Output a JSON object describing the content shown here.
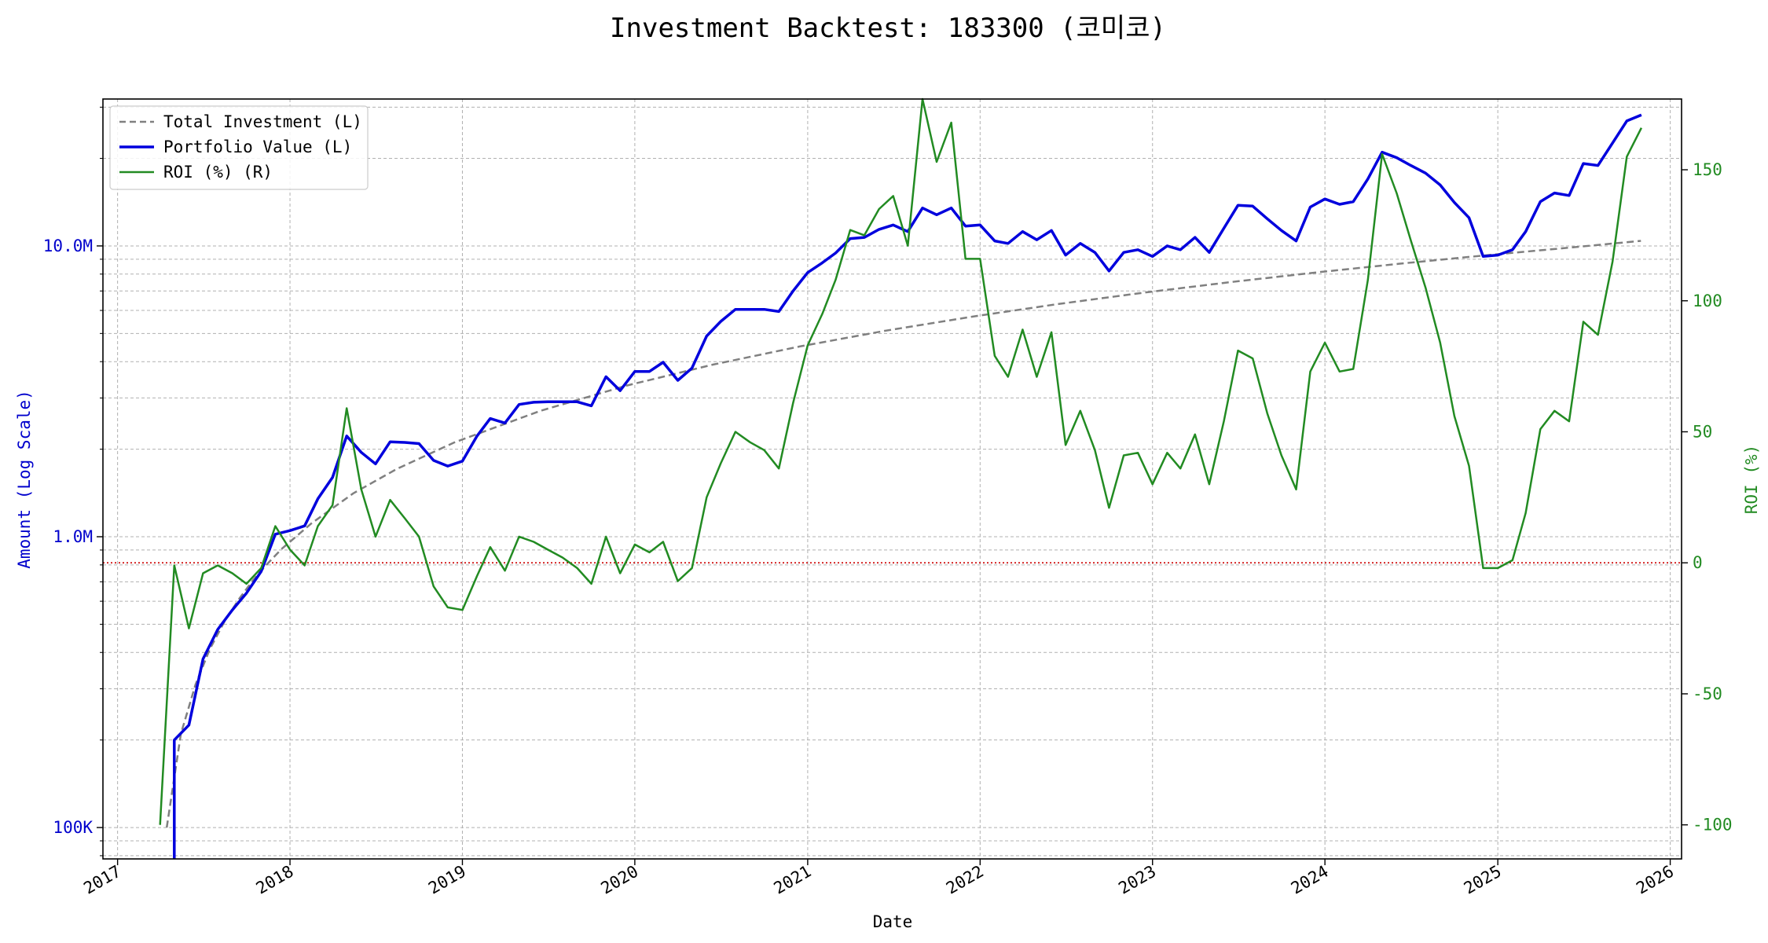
{
  "chart_data": {
    "type": "line",
    "title": "Investment Backtest: 183300 (코미코)",
    "xlabel": "Date",
    "ylabel_left": "Amount (Log Scale)",
    "ylabel_right": "ROI (%)",
    "x_ticks": [
      "2017",
      "2018",
      "2019",
      "2020",
      "2021",
      "2022",
      "2023",
      "2024",
      "2025",
      "2026"
    ],
    "y_left_ticks": [
      "100K",
      "1.0M",
      "10.0M"
    ],
    "y_left_tick_values": [
      100000,
      1000000,
      10000000
    ],
    "y_right_ticks": [
      "-100",
      "-50",
      "0",
      "50",
      "100",
      "150"
    ],
    "y_left_scale": "log",
    "y_left_range": [
      78000,
      32000000
    ],
    "y_right_range": [
      -113,
      177
    ],
    "x_range": [
      "2016-12-01",
      "2026-01-25"
    ],
    "grid": true,
    "legend_position": "upper left",
    "zero_reference_line": {
      "axis": "right",
      "value": 0,
      "color": "#cc0000",
      "style": "dotted"
    },
    "series": [
      {
        "name": "Total Investment (L)",
        "axis": "left",
        "color": "#808080",
        "style": "dashed",
        "x": [
          "2017-04-15",
          "2017-05-15",
          "2017-06-15",
          "2017-07-15",
          "2017-08-15",
          "2017-09-15",
          "2017-10-15",
          "2017-11-15",
          "2017-12-15",
          "2018-02-15",
          "2018-05-15",
          "2018-08-15",
          "2018-12-15",
          "2019-06-15",
          "2019-12-15",
          "2020-06-15",
          "2020-12-15",
          "2021-06-15",
          "2021-12-15",
          "2022-06-15",
          "2022-12-15",
          "2023-06-15",
          "2023-12-15",
          "2024-06-15",
          "2024-12-15",
          "2025-06-15",
          "2025-10-31"
        ],
        "values": [
          100000,
          210000,
          310000,
          410000,
          510000,
          610000,
          710000,
          810000,
          910000,
          1110000,
          1410000,
          1710000,
          2110000,
          2710000,
          3310000,
          3910000,
          4510000,
          5110000,
          5710000,
          6310000,
          6910000,
          7510000,
          8110000,
          8710000,
          9310000,
          9910000,
          10410000
        ]
      },
      {
        "name": "Portfolio Value (L)",
        "axis": "left",
        "color": "#0000dd",
        "style": "solid",
        "x": [
          "2017-05-01",
          "2017-05-01",
          "2017-06-01",
          "2017-07-01",
          "2017-08-01",
          "2017-09-01",
          "2017-10-01",
          "2017-11-01",
          "2017-12-01",
          "2018-01-01",
          "2018-02-01",
          "2018-03-01",
          "2018-04-01",
          "2018-05-01",
          "2018-06-01",
          "2018-07-01",
          "2018-08-01",
          "2018-09-01",
          "2018-10-01",
          "2018-11-01",
          "2018-12-01",
          "2019-01-01",
          "2019-02-01",
          "2019-03-01",
          "2019-04-01",
          "2019-05-01",
          "2019-06-01",
          "2019-07-01",
          "2019-08-01",
          "2019-09-01",
          "2019-10-01",
          "2019-11-01",
          "2019-12-01",
          "2020-01-01",
          "2020-02-01",
          "2020-03-01",
          "2020-04-01",
          "2020-05-01",
          "2020-06-01",
          "2020-07-01",
          "2020-08-01",
          "2020-09-01",
          "2020-10-01",
          "2020-11-01",
          "2020-12-01",
          "2021-01-01",
          "2021-02-01",
          "2021-03-01",
          "2021-04-01",
          "2021-05-01",
          "2021-06-01",
          "2021-07-01",
          "2021-08-01",
          "2021-09-01",
          "2021-10-01",
          "2021-11-01",
          "2021-12-01",
          "2022-01-01",
          "2022-02-01",
          "2022-03-01",
          "2022-04-01",
          "2022-05-01",
          "2022-06-01",
          "2022-07-01",
          "2022-08-01",
          "2022-09-01",
          "2022-10-01",
          "2022-11-01",
          "2022-12-01",
          "2023-01-01",
          "2023-02-01",
          "2023-03-01",
          "2023-04-01",
          "2023-05-01",
          "2023-06-01",
          "2023-07-01",
          "2023-08-01",
          "2023-09-01",
          "2023-10-01",
          "2023-11-01",
          "2023-12-01",
          "2024-01-01",
          "2024-02-01",
          "2024-03-01",
          "2024-04-01",
          "2024-05-01",
          "2024-06-01",
          "2024-07-01",
          "2024-08-01",
          "2024-09-01",
          "2024-10-01",
          "2024-11-01",
          "2024-12-01",
          "2025-01-01",
          "2025-02-01",
          "2025-03-01",
          "2025-04-01",
          "2025-05-01",
          "2025-06-01",
          "2025-07-01",
          "2025-08-01",
          "2025-09-01",
          "2025-10-01",
          "2025-11-01"
        ],
        "values": [
          70000,
          200000,
          225000,
          380000,
          480000,
          560000,
          640000,
          760000,
          1020000,
          1050000,
          1090000,
          1350000,
          1600000,
          2220000,
          1950000,
          1780000,
          2120000,
          2110000,
          2090000,
          1830000,
          1750000,
          1820000,
          2220000,
          2550000,
          2460000,
          2850000,
          2900000,
          2910000,
          2910000,
          2910000,
          2820000,
          3550000,
          3180000,
          3700000,
          3700000,
          3980000,
          3450000,
          3800000,
          4900000,
          5500000,
          6050000,
          6050000,
          6050000,
          5950000,
          7000000,
          8100000,
          8750000,
          9450000,
          10600000,
          10700000,
          11400000,
          11800000,
          11200000,
          13500000,
          12800000,
          13500000,
          11700000,
          11800000,
          10400000,
          10200000,
          11200000,
          10500000,
          11300000,
          9300000,
          10200000,
          9500000,
          8200000,
          9500000,
          9700000,
          9200000,
          10000000,
          9700000,
          10700000,
          9500000,
          11500000,
          13800000,
          13700000,
          12400000,
          11300000,
          10400000,
          13600000,
          14500000,
          13900000,
          14200000,
          17000000,
          21000000,
          20100000,
          18900000,
          17800000,
          16200000,
          14100000,
          12500000,
          9200000,
          9300000,
          9700000,
          11200000,
          14200000,
          15200000,
          14900000,
          19200000,
          18900000,
          22600000,
          26900000,
          28200000
        ]
      },
      {
        "name": "ROI (%) (R)",
        "axis": "right",
        "color": "#228b22",
        "style": "solid",
        "x": [
          "2017-04-01",
          "2017-05-01",
          "2017-06-01",
          "2017-07-01",
          "2017-08-01",
          "2017-09-01",
          "2017-10-01",
          "2017-11-01",
          "2017-12-01",
          "2018-01-01",
          "2018-02-01",
          "2018-03-01",
          "2018-04-01",
          "2018-05-01",
          "2018-06-01",
          "2018-07-01",
          "2018-08-01",
          "2018-09-01",
          "2018-10-01",
          "2018-11-01",
          "2018-12-01",
          "2019-01-01",
          "2019-02-01",
          "2019-03-01",
          "2019-04-01",
          "2019-05-01",
          "2019-06-01",
          "2019-07-01",
          "2019-08-01",
          "2019-09-01",
          "2019-10-01",
          "2019-11-01",
          "2019-12-01",
          "2020-01-01",
          "2020-02-01",
          "2020-03-01",
          "2020-04-01",
          "2020-05-01",
          "2020-06-01",
          "2020-07-01",
          "2020-08-01",
          "2020-09-01",
          "2020-10-01",
          "2020-11-01",
          "2020-12-01",
          "2021-01-01",
          "2021-02-01",
          "2021-03-01",
          "2021-04-01",
          "2021-05-01",
          "2021-06-01",
          "2021-07-01",
          "2021-08-01",
          "2021-09-01",
          "2021-10-01",
          "2021-11-01",
          "2021-12-01",
          "2022-01-01",
          "2022-02-01",
          "2022-03-01",
          "2022-04-01",
          "2022-05-01",
          "2022-06-01",
          "2022-07-01",
          "2022-08-01",
          "2022-09-01",
          "2022-10-01",
          "2022-11-01",
          "2022-12-01",
          "2023-01-01",
          "2023-02-01",
          "2023-03-01",
          "2023-04-01",
          "2023-05-01",
          "2023-06-01",
          "2023-07-01",
          "2023-08-01",
          "2023-09-01",
          "2023-10-01",
          "2023-11-01",
          "2023-12-01",
          "2024-01-01",
          "2024-02-01",
          "2024-03-01",
          "2024-04-01",
          "2024-05-01",
          "2024-06-01",
          "2024-07-01",
          "2024-08-01",
          "2024-09-01",
          "2024-10-01",
          "2024-11-01",
          "2024-12-01",
          "2025-01-01",
          "2025-02-01",
          "2025-03-01",
          "2025-04-01",
          "2025-05-01",
          "2025-06-01",
          "2025-07-01",
          "2025-08-01",
          "2025-09-01",
          "2025-10-01",
          "2025-11-01"
        ],
        "values": [
          -100,
          -1,
          -25,
          -4,
          -1,
          -4,
          -8,
          -2,
          14,
          5,
          -1,
          14,
          22,
          59,
          28,
          10,
          24,
          17,
          10,
          -9,
          -17,
          -18,
          -5,
          6,
          -3,
          10,
          8,
          5,
          2,
          -2,
          -8,
          10,
          -4,
          7,
          4,
          8,
          -7,
          -2,
          25,
          38,
          50,
          46,
          43,
          36,
          61,
          83,
          95,
          108,
          127,
          125,
          135,
          140,
          121,
          177,
          153,
          168,
          116,
          116,
          79,
          71,
          89,
          71,
          88,
          45,
          58,
          43,
          21,
          41,
          42,
          30,
          42,
          36,
          49,
          30,
          54,
          81,
          78,
          57,
          41,
          28,
          73,
          84,
          73,
          74,
          108,
          156,
          141,
          123,
          105,
          84,
          56,
          37,
          -2,
          -2,
          1,
          19,
          51,
          58,
          54,
          92,
          87,
          115,
          155,
          166
        ]
      }
    ]
  }
}
